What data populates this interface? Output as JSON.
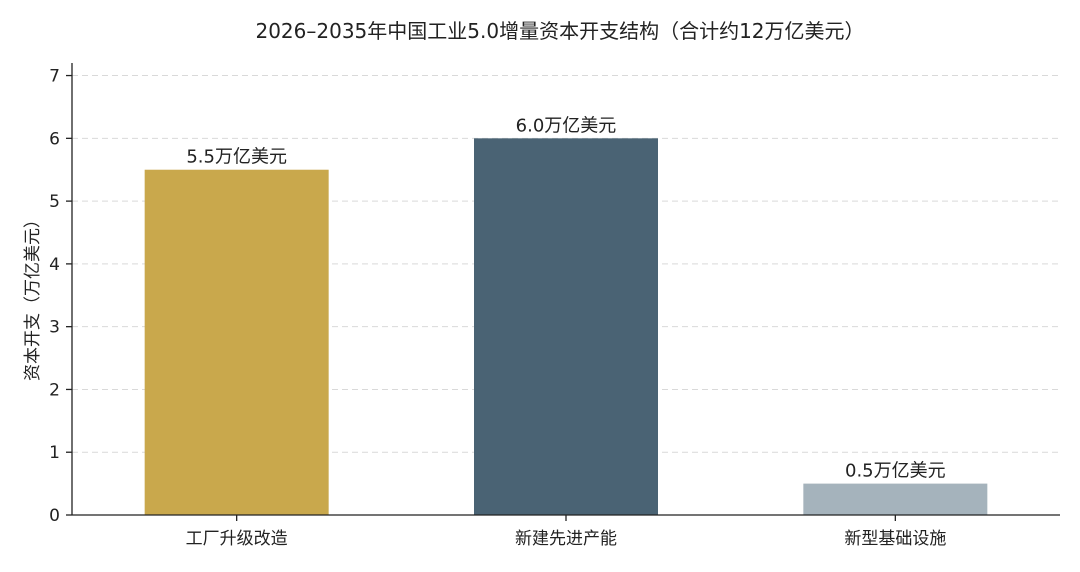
{
  "chart_data": {
    "type": "bar",
    "title": "2026–2035年中国工业5.0增量资本开支结构（合计约12万亿美元）",
    "xlabel": "",
    "ylabel": "资本开支（万亿美元）",
    "ylim": [
      0,
      7.2
    ],
    "yticks": [
      "0",
      "1",
      "2",
      "3",
      "4",
      "5",
      "6",
      "7"
    ],
    "ytick_values": [
      0,
      1,
      2,
      3,
      4,
      5,
      6,
      7
    ],
    "grid": "horizontal dashed",
    "categories": [
      "工厂升级改造",
      "新建先进产能",
      "新型基础设施"
    ],
    "values": [
      5.5,
      6.0,
      0.5
    ],
    "data_labels": [
      "5.5万亿美元",
      "6.0万亿美元",
      "0.5万亿美元"
    ],
    "colors": [
      "#C9A84C",
      "#4A6374",
      "#A5B3BC"
    ]
  }
}
